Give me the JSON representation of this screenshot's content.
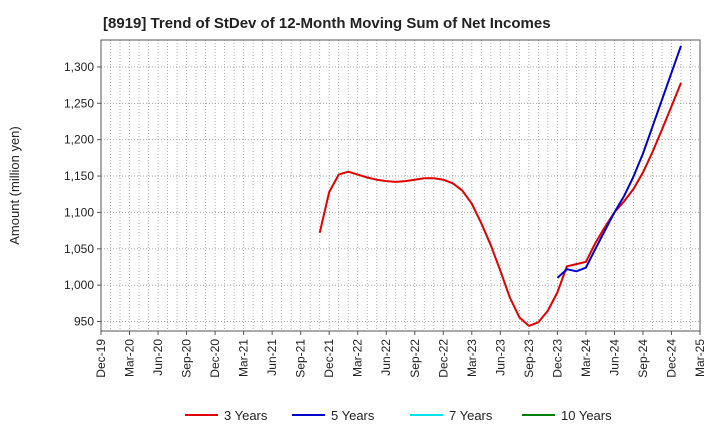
{
  "chart_data": {
    "type": "line",
    "title": "[8919]  Trend of StDev of 12-Month Moving Sum of Net Incomes",
    "ylabel": "Amount (million yen)",
    "xlabel": "",
    "ylim": [
      937,
      1337
    ],
    "yticks": [
      950,
      1000,
      1050,
      1100,
      1150,
      1200,
      1250,
      1300
    ],
    "ytick_labels": [
      "950",
      "1,000",
      "1,050",
      "1,100",
      "1,150",
      "1,200",
      "1,250",
      "1,300"
    ],
    "xlim": [
      "2019-12",
      "2025-03"
    ],
    "xtick_labels": [
      "Dec-19",
      "Mar-20",
      "Jun-20",
      "Sep-20",
      "Dec-20",
      "Mar-21",
      "Jun-21",
      "Sep-21",
      "Dec-21",
      "Mar-22",
      "Jun-22",
      "Sep-22",
      "Dec-22",
      "Mar-23",
      "Jun-23",
      "Sep-23",
      "Dec-23",
      "Mar-24",
      "Jun-24",
      "Sep-24",
      "Dec-24",
      "Mar-25"
    ],
    "grid": true,
    "legend_position": "bottom",
    "series": [
      {
        "name": "3 Years",
        "color": "#e00000",
        "points": [
          [
            "2021-11",
            1072
          ],
          [
            "2021-12",
            1128
          ],
          [
            "2022-01",
            1152
          ],
          [
            "2022-02",
            1156
          ],
          [
            "2022-03",
            1152
          ],
          [
            "2022-04",
            1148
          ],
          [
            "2022-05",
            1145
          ],
          [
            "2022-06",
            1143
          ],
          [
            "2022-07",
            1142
          ],
          [
            "2022-08",
            1143
          ],
          [
            "2022-09",
            1145
          ],
          [
            "2022-10",
            1147
          ],
          [
            "2022-11",
            1147
          ],
          [
            "2022-12",
            1145
          ],
          [
            "2023-01",
            1140
          ],
          [
            "2023-02",
            1130
          ],
          [
            "2023-03",
            1112
          ],
          [
            "2023-04",
            1085
          ],
          [
            "2023-05",
            1055
          ],
          [
            "2023-06",
            1020
          ],
          [
            "2023-07",
            983
          ],
          [
            "2023-08",
            956
          ],
          [
            "2023-09",
            944
          ],
          [
            "2023-10",
            949
          ],
          [
            "2023-11",
            965
          ],
          [
            "2023-12",
            990
          ],
          [
            "2024-01",
            1026
          ],
          [
            "2024-02",
            1029
          ],
          [
            "2024-03",
            1032
          ],
          [
            "2024-04",
            1058
          ],
          [
            "2024-05",
            1080
          ],
          [
            "2024-06",
            1100
          ],
          [
            "2024-07",
            1115
          ],
          [
            "2024-08",
            1132
          ],
          [
            "2024-09",
            1155
          ],
          [
            "2024-10",
            1183
          ],
          [
            "2024-11",
            1214
          ],
          [
            "2024-12",
            1246
          ],
          [
            "2025-01",
            1278
          ]
        ]
      },
      {
        "name": "5 Years",
        "color": "#0000cc",
        "points": [
          [
            "2023-12",
            1010
          ],
          [
            "2024-01",
            1022
          ],
          [
            "2024-02",
            1019
          ],
          [
            "2024-03",
            1024
          ],
          [
            "2024-04",
            1050
          ],
          [
            "2024-05",
            1075
          ],
          [
            "2024-06",
            1100
          ],
          [
            "2024-07",
            1122
          ],
          [
            "2024-08",
            1149
          ],
          [
            "2024-09",
            1181
          ],
          [
            "2024-10",
            1218
          ],
          [
            "2024-11",
            1255
          ],
          [
            "2024-12",
            1292
          ],
          [
            "2025-01",
            1329
          ]
        ]
      },
      {
        "name": "7 Years",
        "color": "#00e5ee",
        "points": []
      },
      {
        "name": "10 Years",
        "color": "#008000",
        "points": []
      }
    ]
  }
}
